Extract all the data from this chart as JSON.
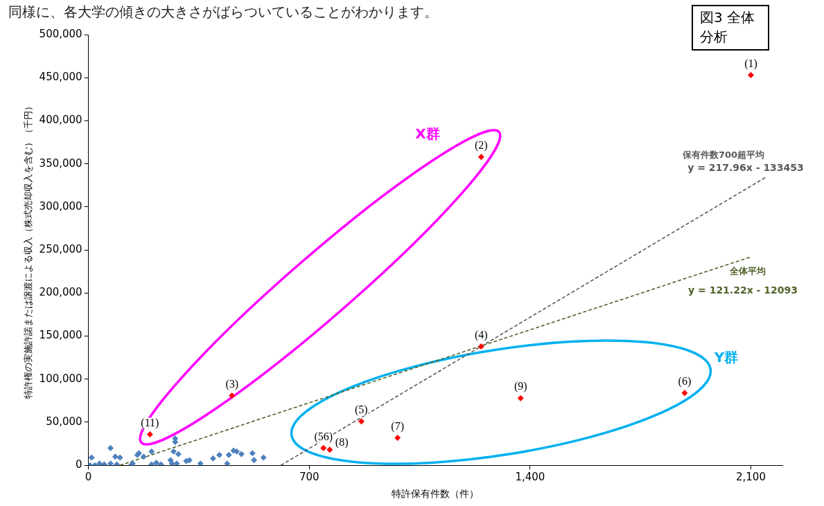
{
  "chart_data": {
    "type": "scatter",
    "title": "図3 全体分析",
    "subtitle": "同様に、各大学の傾きの大きさがばらついていることがわかります。",
    "xlabel": "特許保有件数（件）",
    "ylabel": "特許権の実施許諾または譲渡による収入（株式売却収入を含む）（千円）",
    "xlim": [
      0,
      2200
    ],
    "xticks": [
      0,
      700,
      {
        "value": 1400,
        "label": "1,400"
      },
      {
        "value": 2100,
        "label": "2,100"
      }
    ],
    "ylim": [
      0,
      500000
    ],
    "yticks": [
      0,
      {
        "value": 50000,
        "label": "50,000"
      },
      {
        "value": 100000,
        "label": "100,000"
      },
      {
        "value": 150000,
        "label": "150,000"
      },
      {
        "value": 200000,
        "label": "200,000"
      },
      {
        "value": 250000,
        "label": "250,000"
      },
      {
        "value": 300000,
        "label": "300,000"
      },
      {
        "value": 350000,
        "label": "350,000"
      },
      {
        "value": 400000,
        "label": "400,000"
      },
      {
        "value": 450000,
        "label": "450,000"
      },
      {
        "value": 500000,
        "label": "500,000"
      }
    ],
    "grid": false,
    "legend": false,
    "marker": "diamond",
    "series": [
      {
        "color": "#4f81bd",
        "x": [
          10,
          5,
          20,
          35,
          50,
          70,
          70,
          85,
          100,
          90,
          135,
          140,
          155,
          160,
          175,
          200,
          200,
          215,
          230,
          275,
          260,
          265,
          270,
          275,
          285,
          280,
          310,
          320,
          355,
          395,
          415,
          440,
          445,
          460,
          470,
          485,
          520,
          525,
          555
        ],
        "values": [
          9000,
          0,
          0,
          2000,
          1000,
          20000,
          2000,
          10000,
          9000,
          1000,
          0,
          2000,
          12000,
          14000,
          10000,
          16000,
          1000,
          3000,
          1000,
          31000,
          6000,
          2000,
          16000,
          27000,
          13000,
          2000,
          5000,
          6000,
          2000,
          8000,
          12000,
          2000,
          12000,
          17000,
          16000,
          13000,
          14000,
          6000,
          9000
        ]
      },
      {
        "name": "(1)",
        "color": "#ff0000",
        "x": [
          2100
        ],
        "values": [
          453000
        ]
      },
      {
        "name": "(2)",
        "color": "#ff0000",
        "x": [
          1245
        ],
        "values": [
          358000
        ]
      },
      {
        "name": "(3)",
        "color": "#ff0000",
        "x": [
          455
        ],
        "values": [
          81000
        ]
      },
      {
        "name": "(4)",
        "color": "#ff0000",
        "x": [
          1245
        ],
        "values": [
          138000
        ]
      },
      {
        "name": "(5)",
        "color": "#ff0000",
        "x": [
          865
        ],
        "values": [
          51000
        ]
      },
      {
        "name": "(56)",
        "color": "#ff0000",
        "x": [
          745
        ],
        "values": [
          20000
        ]
      },
      {
        "name": "(8)",
        "color": "#ff0000",
        "x": [
          765
        ],
        "values": [
          18000
        ]
      },
      {
        "name": "(7)",
        "color": "#ff0000",
        "x": [
          980
        ],
        "values": [
          32000
        ]
      },
      {
        "name": "(9)",
        "color": "#ff0000",
        "x": [
          1370
        ],
        "values": [
          78000
        ]
      },
      {
        "name": "(6)",
        "color": "#ff0000",
        "x": [
          1890
        ],
        "values": [
          84000
        ]
      },
      {
        "name": "(11)",
        "color": "#ff0000",
        "x": [
          195
        ],
        "values": [
          36000
        ]
      },
      {
        "type": "line",
        "color": "#595959",
        "marker": "none",
        "line_style": "dashed",
        "x": [
          610,
          2150
        ],
        "values": [
          0,
          335000
        ]
      },
      {
        "type": "line",
        "color": "#4f6228",
        "marker": "none",
        "line_style": "dashed",
        "x": [
          100,
          2100
        ],
        "values": [
          0,
          242000
        ]
      }
    ],
    "annotations": [
      "X群",
      "Y群",
      "保有件数700超平均",
      "y = 217.96x - 133453",
      "全体平均",
      "y = 121.22x - 12093"
    ]
  }
}
